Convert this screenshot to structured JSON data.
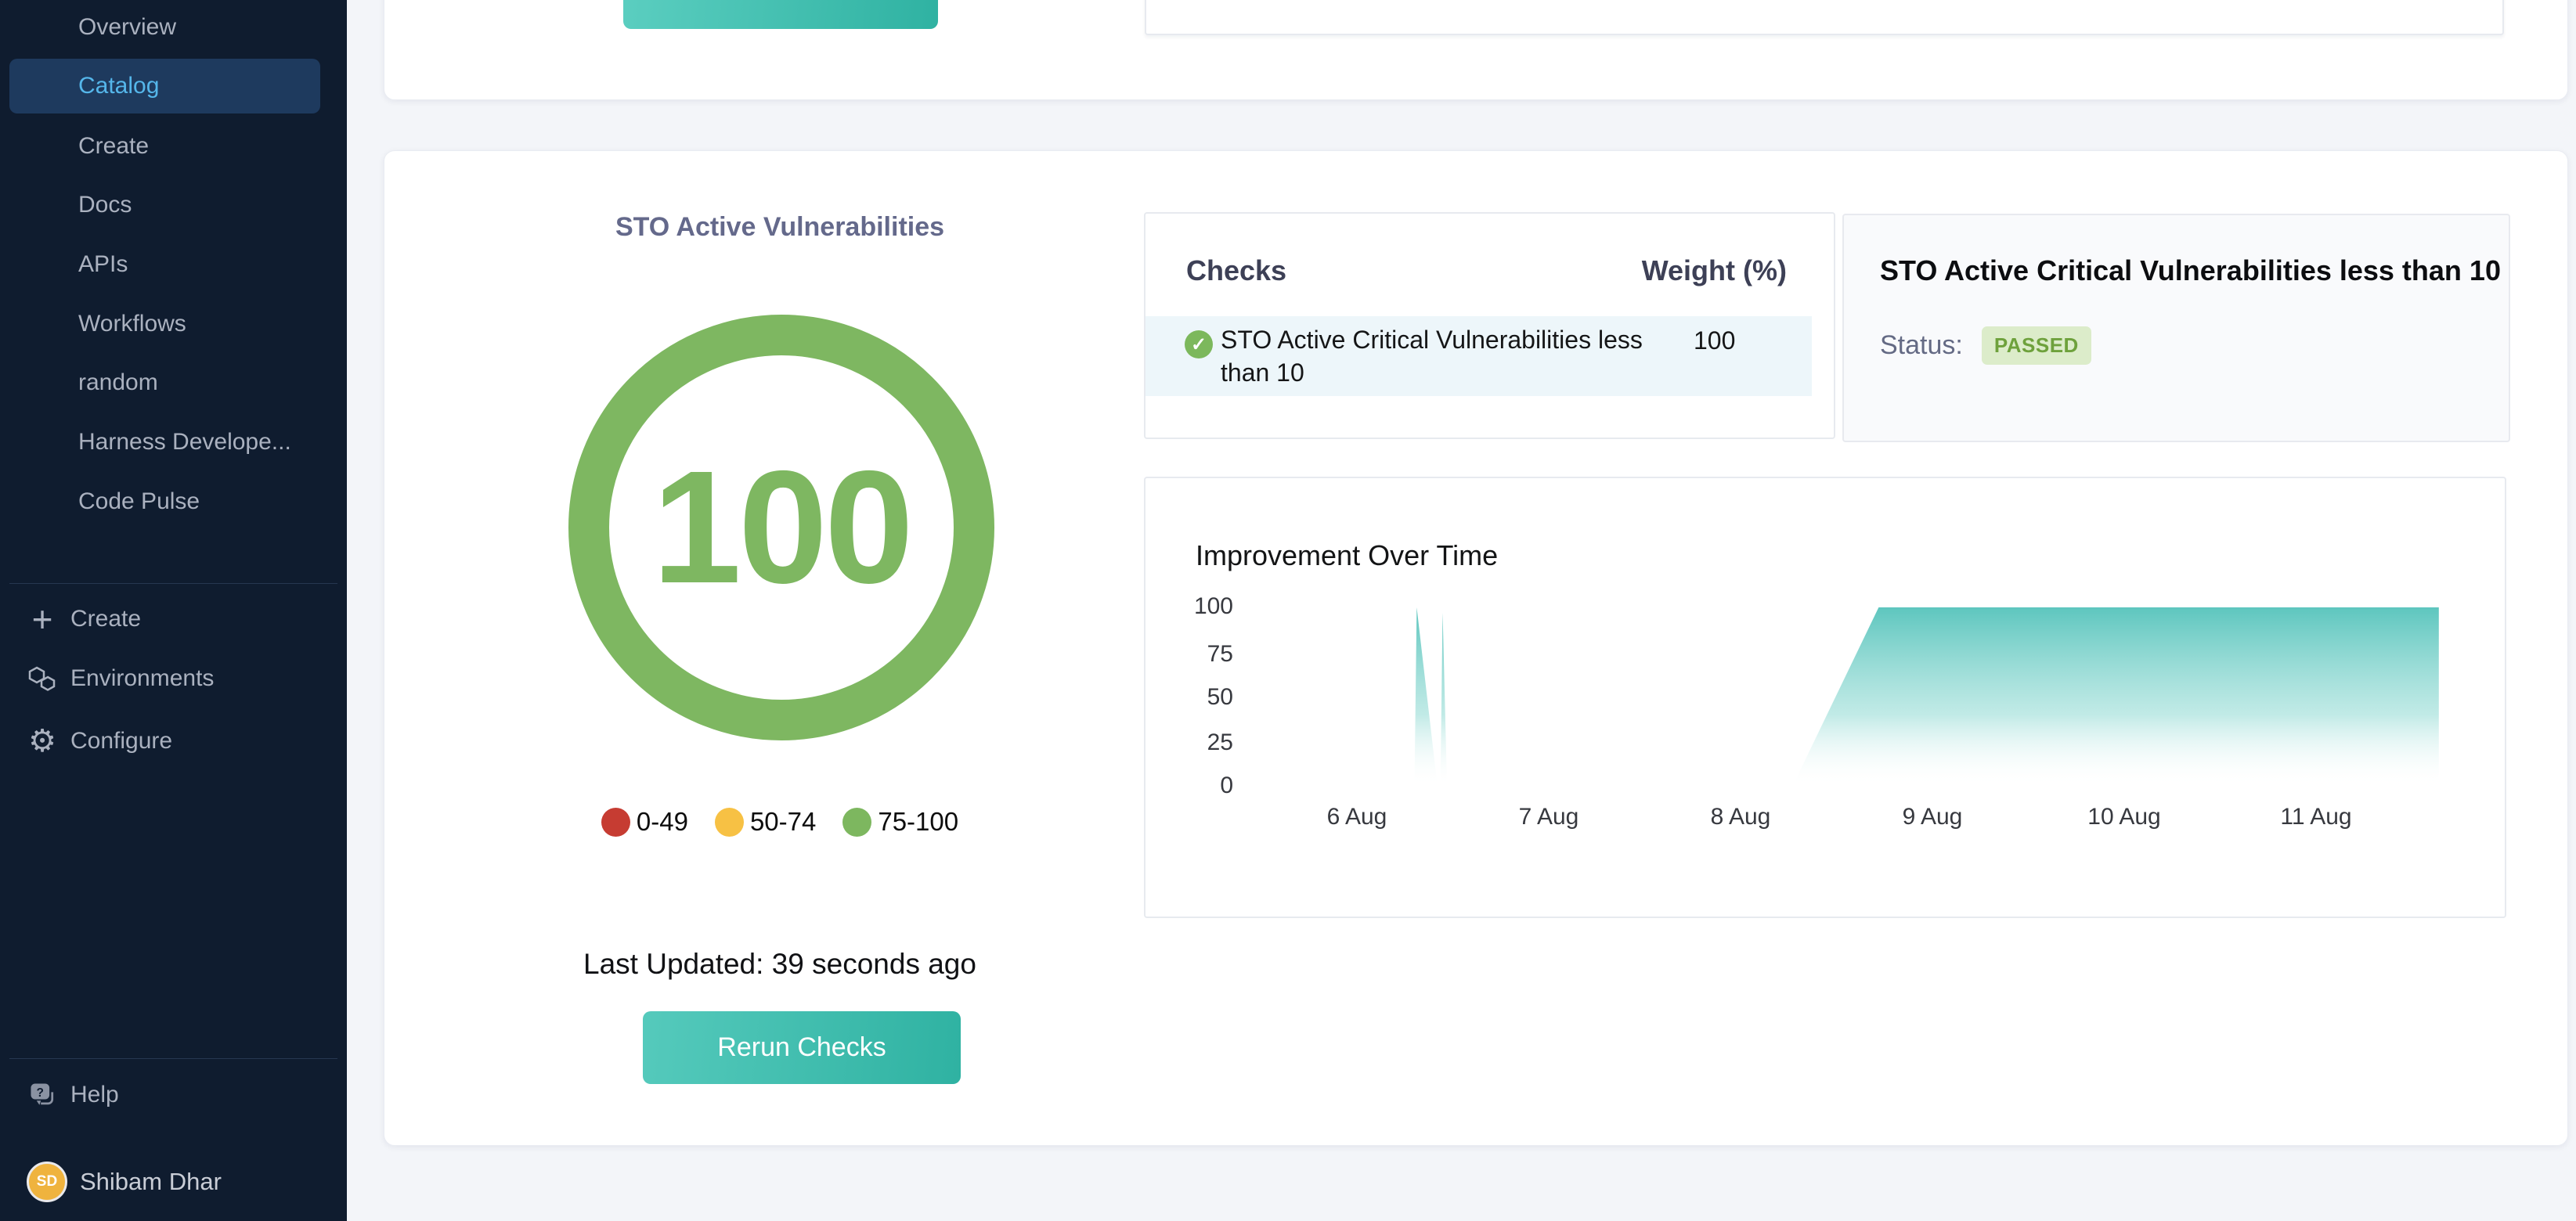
{
  "sidebar": {
    "items": [
      {
        "label": "Overview",
        "active": false
      },
      {
        "label": "Catalog",
        "active": true
      },
      {
        "label": "Create",
        "active": false
      },
      {
        "label": "Docs",
        "active": false
      },
      {
        "label": "APIs",
        "active": false
      },
      {
        "label": "Workflows",
        "active": false
      },
      {
        "label": "random",
        "active": false
      },
      {
        "label": "Harness Develope...",
        "active": false
      },
      {
        "label": "Code Pulse",
        "active": false
      }
    ],
    "actions": {
      "create": "Create",
      "environments": "Environments",
      "configure": "Configure"
    },
    "help_label": "Help",
    "user": {
      "name": "Shibam Dhar",
      "initials": "SD"
    }
  },
  "scorecard": {
    "title": "STO Active Vulnerabilities",
    "score": "100",
    "legend": [
      {
        "label": "0-49",
        "color": "#c63c32"
      },
      {
        "label": "50-74",
        "color": "#f7c144"
      },
      {
        "label": "75-100",
        "color": "#7db75f"
      }
    ],
    "last_updated": "Last Updated: 39 seconds ago",
    "rerun_button": "Rerun Checks"
  },
  "checks_table": {
    "col_checks": "Checks",
    "col_weight": "Weight (%)",
    "rows": [
      {
        "name": "STO Active Critical Vulnerabilities less than 10",
        "weight": "100",
        "status": "passed",
        "check_icon": "check-circle"
      }
    ]
  },
  "check_detail": {
    "title": "STO Active Critical Vulnerabilities less than 10",
    "status_label": "Status:",
    "status_value": "PASSED",
    "badge_bg": "#dcecca",
    "badge_text_color": "#6ea13c"
  },
  "chart_data": {
    "type": "area",
    "title": "Improvement Over Time",
    "xlabel": "",
    "ylabel": "",
    "x_ticks": [
      "6 Aug",
      "7 Aug",
      "8 Aug",
      "9 Aug",
      "10 Aug",
      "11 Aug"
    ],
    "y_ticks": [
      "100",
      "75",
      "50",
      "25",
      "0"
    ],
    "ylim": [
      0,
      100
    ],
    "grid": false,
    "legend_position": "none",
    "series": [
      {
        "name": "score",
        "fill": "teal-gradient",
        "segments": [
          [
            [
              6.3,
              0
            ],
            [
              6.312,
              100
            ],
            [
              6.42,
              0
            ]
          ],
          [
            [
              6.435,
              0
            ],
            [
              6.447,
              97
            ],
            [
              6.47,
              0
            ]
          ],
          [
            [
              8.27,
              0
            ],
            [
              8.72,
              100
            ],
            [
              11.64,
              100
            ],
            [
              11.64,
              0
            ]
          ]
        ]
      }
    ]
  },
  "colors": {
    "sidebar_bg": "#0f1c2f",
    "sidebar_active_bg": "#1e3a5e",
    "sidebar_active_text": "#55b6ea",
    "score_green": "#7eb761",
    "button_teal_start": "#55cabc",
    "button_teal_end": "#2fb2a2",
    "area_teal": "#55c3bb",
    "row_highlight": "#edf6fa"
  }
}
